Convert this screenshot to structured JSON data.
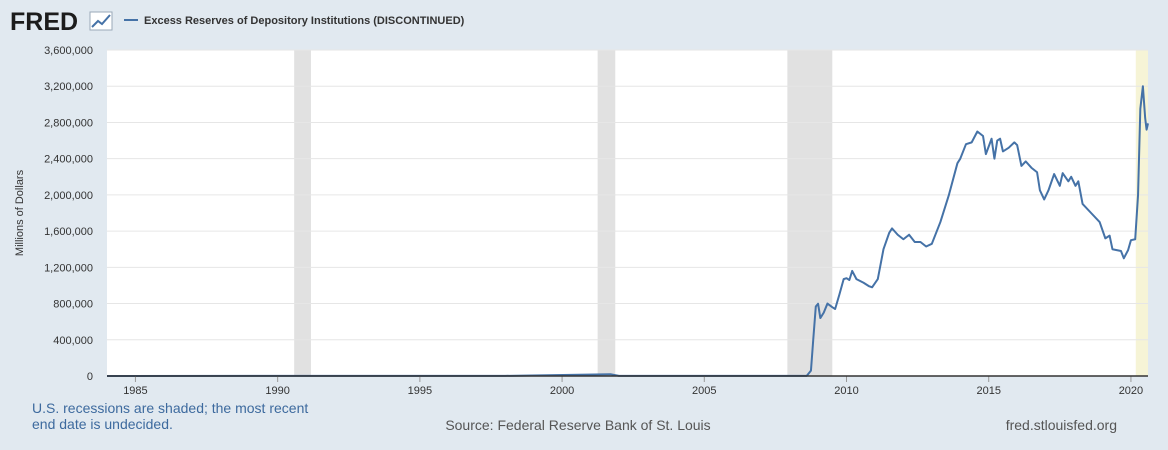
{
  "logo": "FRED",
  "chart_data": {
    "type": "line",
    "title": "Excess Reserves of Depository Institutions (DISCONTINUED)",
    "y_label": "Millions of Dollars",
    "footnote": "U.S. recessions are shaded; the most recent end date is undecided.",
    "source": "Source: Federal Reserve Bank of St. Louis",
    "url": "fred.stlouisfed.org",
    "xlim": [
      1984,
      2020.6
    ],
    "xticks": [
      1985,
      1990,
      1995,
      2000,
      2005,
      2010,
      2015,
      2020
    ],
    "ylim": [
      0,
      3600000
    ],
    "yticks": [
      0,
      {
        "value": 400000,
        "label": "400,000"
      },
      {
        "value": 800000,
        "label": "800,000"
      },
      {
        "value": 1200000,
        "label": "1,200,000"
      },
      {
        "value": 1600000,
        "label": "1,600,000"
      },
      {
        "value": 2000000,
        "label": "2,000,000"
      },
      {
        "value": 2400000,
        "label": "2,400,000"
      },
      {
        "value": 2800000,
        "label": "2,800,000"
      },
      {
        "value": 3200000,
        "label": "3,200,000"
      },
      {
        "value": 3600000,
        "label": "3,600,000"
      }
    ],
    "grid": true,
    "recessions": [
      {
        "start": 1990.58,
        "end": 1991.17,
        "color": "#e1e1e1"
      },
      {
        "start": 2001.25,
        "end": 2001.87,
        "color": "#e1e1e1"
      },
      {
        "start": 2007.92,
        "end": 2009.5,
        "color": "#e1e1e1"
      },
      {
        "start": 2020.17,
        "end": 2020.6,
        "color": "#f6f4d6"
      }
    ],
    "series": [
      {
        "name": "Excess Reserves of Depository Institutions (DISCONTINUED)",
        "color": "#4572a7",
        "x": [
          1984,
          1990,
          1995,
          1998,
          2001.7,
          2002,
          2008,
          2008.6,
          2008.75,
          2008.83,
          2008.92,
          2009,
          2009.08,
          2009.2,
          2009.33,
          2009.5,
          2009.6,
          2009.75,
          2009.9,
          2010,
          2010.1,
          2010.2,
          2010.35,
          2010.6,
          2010.8,
          2010.9,
          2011.1,
          2011.3,
          2011.5,
          2011.6,
          2011.8,
          2012,
          2012.2,
          2012.4,
          2012.6,
          2012.8,
          2013,
          2013.3,
          2013.6,
          2013.9,
          2014,
          2014.2,
          2014.4,
          2014.6,
          2014.8,
          2014.9,
          2015.1,
          2015.2,
          2015.3,
          2015.4,
          2015.5,
          2015.7,
          2015.9,
          2016,
          2016.15,
          2016.3,
          2016.5,
          2016.7,
          2016.8,
          2016.95,
          2017.1,
          2017.3,
          2017.5,
          2017.6,
          2017.8,
          2017.9,
          2018.05,
          2018.15,
          2018.3,
          2018.6,
          2018.9,
          2019.1,
          2019.25,
          2019.35,
          2019.5,
          2019.65,
          2019.75,
          2019.9,
          2020,
          2020.15,
          2020.25,
          2020.33,
          2020.42,
          2020.5,
          2020.55,
          2020.6
        ],
        "values": [
          500,
          1000,
          1000,
          1500,
          20000,
          1500,
          1800,
          2000,
          60000,
          400000,
          767000,
          798000,
          640000,
          700000,
          800000,
          760000,
          740000,
          900000,
          1070000,
          1080000,
          1060000,
          1160000,
          1070000,
          1030000,
          990000,
          980000,
          1070000,
          1400000,
          1580000,
          1630000,
          1560000,
          1510000,
          1560000,
          1480000,
          1480000,
          1430000,
          1460000,
          1700000,
          2000000,
          2350000,
          2400000,
          2560000,
          2580000,
          2700000,
          2650000,
          2450000,
          2620000,
          2400000,
          2600000,
          2620000,
          2480000,
          2520000,
          2580000,
          2550000,
          2320000,
          2370000,
          2300000,
          2250000,
          2050000,
          1950000,
          2050000,
          2230000,
          2100000,
          2240000,
          2150000,
          2200000,
          2100000,
          2150000,
          1900000,
          1800000,
          1700000,
          1520000,
          1550000,
          1400000,
          1390000,
          1380000,
          1300000,
          1390000,
          1500000,
          1510000,
          2000000,
          2950000,
          3200000,
          2850000,
          2720000,
          2790000
        ]
      }
    ]
  }
}
